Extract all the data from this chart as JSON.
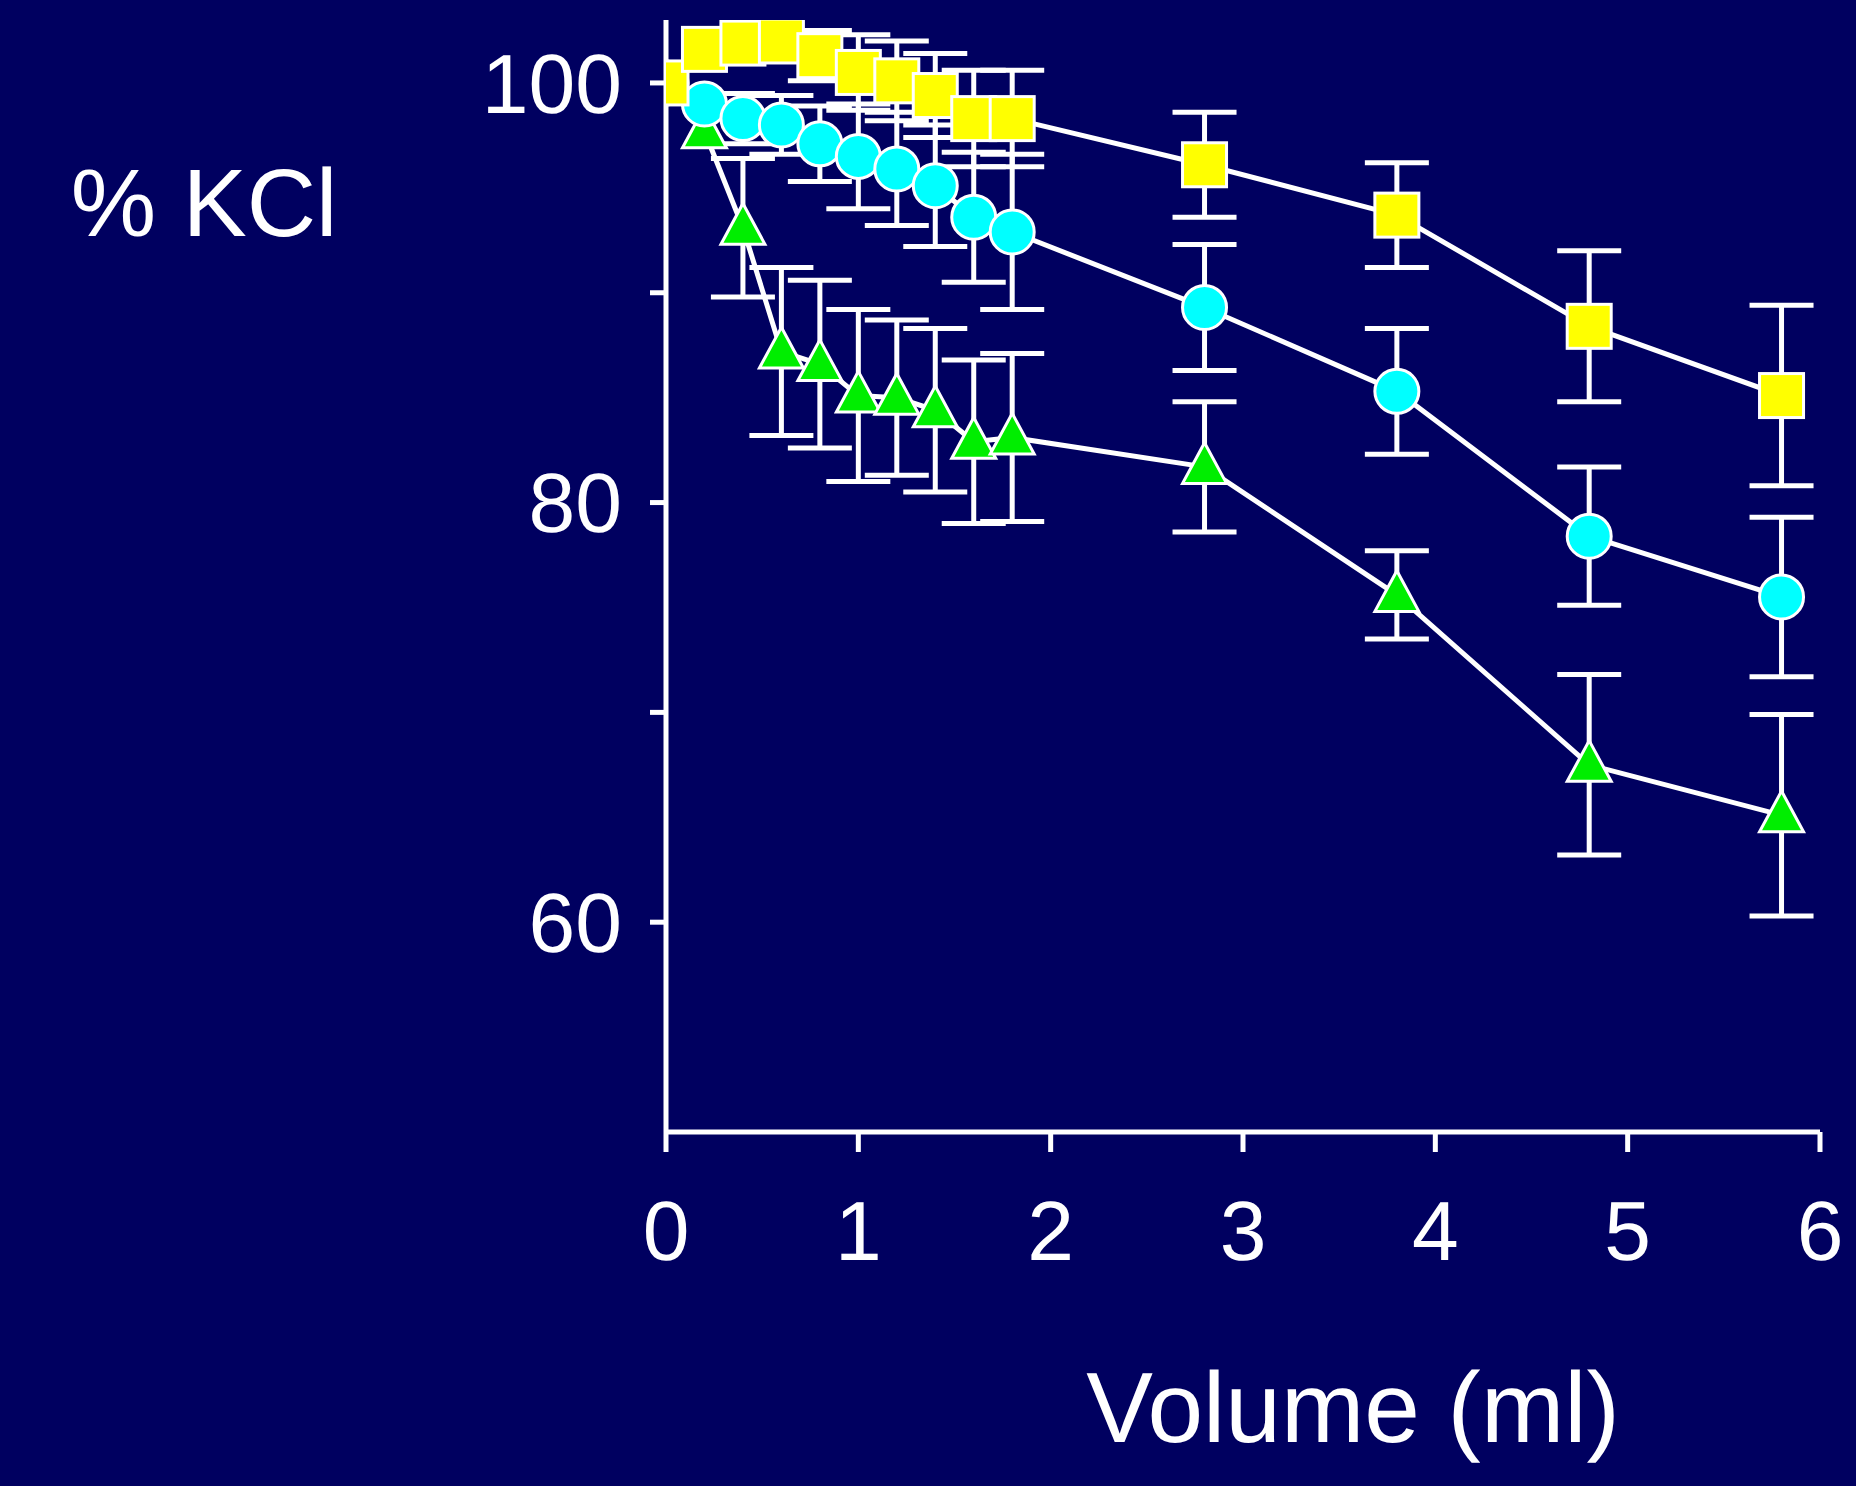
{
  "chart_data": {
    "type": "line",
    "ylabel": "% KCl",
    "xlabel": "Volume (ml)",
    "x": [
      0,
      0.2,
      0.4,
      0.6,
      0.8,
      1.0,
      1.2,
      1.4,
      1.6,
      1.8,
      2.8,
      3.8,
      4.8,
      5.8
    ],
    "series": [
      {
        "color": "#00ee00",
        "marker": "triangle",
        "values": [
          100,
          97.7,
          93.1,
          87.2,
          86.6,
          85.1,
          85.0,
          84.4,
          82.9,
          83.1,
          81.7,
          75.6,
          67.5,
          65.1
        ],
        "errors": [
          null,
          null,
          3.3,
          4.0,
          4.0,
          4.1,
          3.7,
          3.9,
          3.9,
          4.0,
          3.1,
          2.1,
          4.3,
          4.8
        ]
      },
      {
        "color": "#00ffff",
        "marker": "circle",
        "values": [
          100,
          99.0,
          98.3,
          98.0,
          97.1,
          96.5,
          95.9,
          95.1,
          93.6,
          92.9,
          89.3,
          85.3,
          78.4,
          75.5
        ],
        "errors": [
          null,
          null,
          1.2,
          1.4,
          1.8,
          2.5,
          2.7,
          2.9,
          3.1,
          3.7,
          3.0,
          3.0,
          3.3,
          3.8
        ]
      },
      {
        "color": "#ffff00",
        "marker": "square",
        "values": [
          100,
          101.6,
          101.9,
          102.0,
          101.3,
          100.5,
          100.1,
          99.4,
          98.3,
          98.3,
          96.1,
          93.7,
          88.4,
          85.1
        ],
        "errors": [
          null,
          null,
          null,
          null,
          1.2,
          1.8,
          1.9,
          2.0,
          2.3,
          2.3,
          2.5,
          2.5,
          3.6,
          4.3
        ]
      }
    ],
    "xlim": [
      0,
      6
    ],
    "xticks": [
      0,
      1,
      2,
      3,
      4,
      5,
      6
    ],
    "ylim": [
      50,
      103
    ],
    "yticks": [
      60,
      {
        "value": 70,
        "label": null
      },
      80,
      {
        "value": 90,
        "label": null
      },
      100
    ],
    "grid": false
  }
}
